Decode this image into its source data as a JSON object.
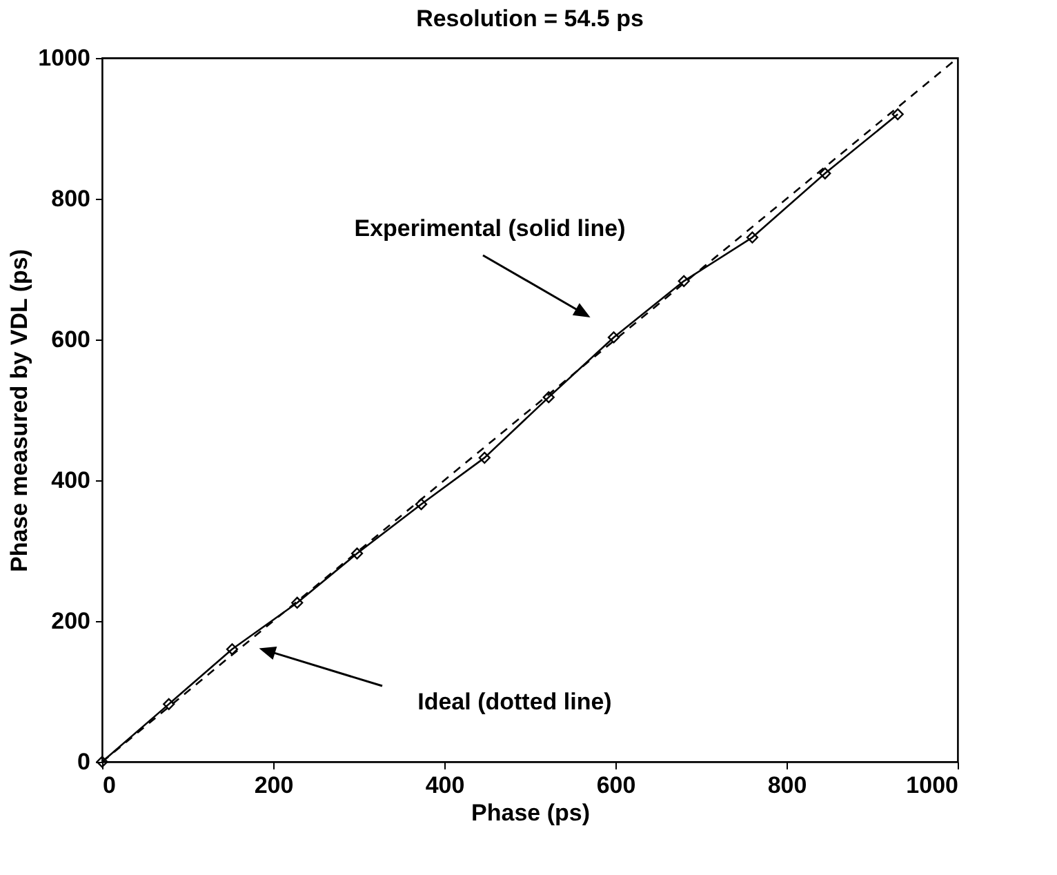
{
  "chart_data": {
    "type": "line",
    "title": "Resolution = 54.5 ps",
    "xlabel": "Phase (ps)",
    "ylabel": "Phase measured by VDL (ps)",
    "xlim": [
      0,
      1000
    ],
    "ylim": [
      0,
      1000
    ],
    "xticks": [
      0,
      200,
      400,
      600,
      800,
      1000
    ],
    "yticks": [
      0,
      200,
      400,
      600,
      800,
      1000
    ],
    "grid": false,
    "series": [
      {
        "color": "#000000",
        "marker": "diamond",
        "line_style": "solid",
        "x": [
          0,
          78,
          152,
          228,
          298,
          373,
          447,
          522,
          598,
          680,
          760,
          845,
          930
        ],
        "values": [
          0,
          82,
          160,
          226,
          296,
          366,
          432,
          518,
          603,
          683,
          745,
          836,
          920
        ]
      },
      {
        "color": "#000000",
        "marker": "none",
        "line_style": "dashed",
        "x": [
          0,
          1000
        ],
        "values": [
          0,
          1000
        ]
      }
    ],
    "annotations": [
      "Experimental (solid line)",
      "Ideal (dotted line)"
    ]
  }
}
